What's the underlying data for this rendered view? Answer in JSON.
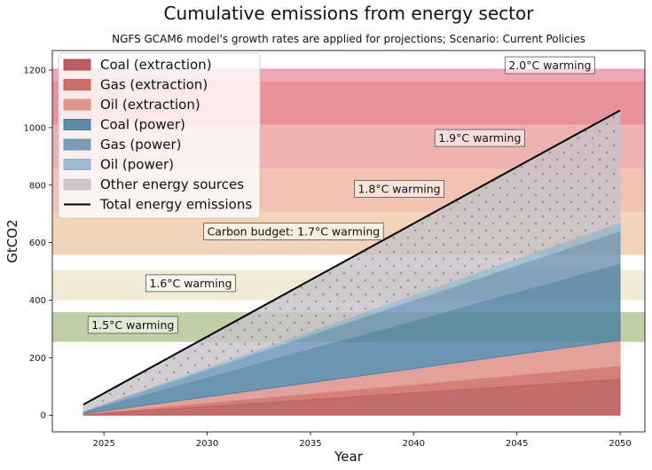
{
  "chart_data": {
    "type": "area",
    "title": "Cumulative emissions from energy sector",
    "subtitle": "NGFS GCAM6 model's growth rates are applied for projections; Scenario: Current Policies",
    "xlabel": "Year",
    "ylabel": "GtCO2",
    "xlim": [
      2022.5,
      2051.2
    ],
    "ylim": [
      -58,
      1268
    ],
    "x": [
      2024,
      2050
    ],
    "x_ticks": [
      2025,
      2030,
      2035,
      2040,
      2045,
      2050
    ],
    "y_ticks": [
      0,
      200,
      400,
      600,
      800,
      1000,
      1200
    ],
    "stacked_series": [
      {
        "name": "Coal (extraction)",
        "color": "#b44c4c",
        "values": [
          2,
          125
        ]
      },
      {
        "name": "Gas (extraction)",
        "color": "#c8645a",
        "values": [
          1,
          45
        ]
      },
      {
        "name": "Oil (extraction)",
        "color": "#dc8c84",
        "values": [
          2,
          90
        ]
      },
      {
        "name": "Coal (power)",
        "color": "#4a7fa0",
        "values": [
          5,
          265
        ]
      },
      {
        "name": "Gas (power)",
        "color": "#6b93b3",
        "values": [
          2,
          115
        ]
      },
      {
        "name": "Oil (power)",
        "color": "#93b4cc",
        "values": [
          1,
          30
        ]
      },
      {
        "name": "Other energy sources",
        "color": "#c8c2c8",
        "values": [
          24,
          390
        ]
      }
    ],
    "total_line": {
      "name": "Total energy emissions",
      "color": "#000000",
      "values": [
        37,
        1060
      ]
    },
    "budget_bands": [
      {
        "label": "1.5°C warming",
        "range": [
          255,
          358
        ],
        "color": "#a9bf88",
        "label_x": 2024.4,
        "label_y": 300
      },
      {
        "label": "1.6°C warming",
        "range": [
          400,
          505
        ],
        "color": "#ede3c8",
        "label_x": 2027.2,
        "label_y": 445
      },
      {
        "label": "Carbon budget: 1.7°C warming",
        "range": [
          558,
          706
        ],
        "color": "#efc69f",
        "label_x": 2030,
        "label_y": 625
      },
      {
        "label": "1.8°C warming",
        "range": [
          706,
          858
        ],
        "color": "#edad98",
        "label_x": 2037.3,
        "label_y": 773
      },
      {
        "label": "1.9°C warming",
        "range": [
          858,
          1010
        ],
        "color": "#e89797",
        "label_x": 2041.2,
        "label_y": 950
      },
      {
        "label": "",
        "range": [
          1010,
          1160
        ],
        "color": "#e06c78",
        "label_x": null,
        "label_y": null
      },
      {
        "label": "2.0°C warming",
        "range": [
          1160,
          1205
        ],
        "color": "#e88896",
        "label_x": 2044.6,
        "label_y": 1203
      }
    ],
    "legend_position": "upper-left",
    "grid": false
  }
}
